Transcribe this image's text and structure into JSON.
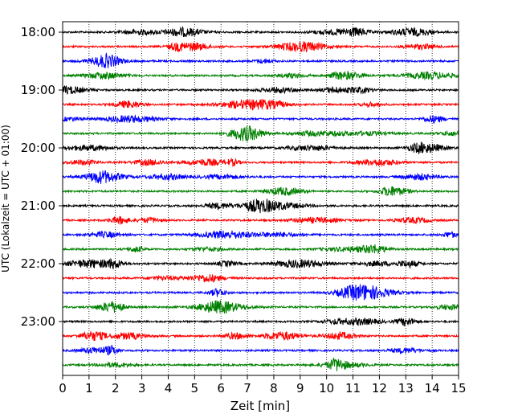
{
  "chart_data": {
    "type": "line",
    "title": "",
    "xlabel": "Zeit  [min]",
    "ylabel": "UTC (Lokalzeit = UTC + 01:00)",
    "xlim": [
      0,
      15
    ],
    "x_ticks": [
      "0",
      "1",
      "2",
      "3",
      "4",
      "5",
      "6",
      "7",
      "8",
      "9",
      "10",
      "11",
      "12",
      "13",
      "14",
      "15"
    ],
    "y_ticks": [
      "18:00",
      "19:00",
      "20:00",
      "21:00",
      "22:00",
      "23:00"
    ],
    "trace_interval_min": 15,
    "first_trace": "18:00",
    "last_trace": "23:45",
    "trace_count": 24,
    "trace_colors": [
      "#000000",
      "#ff0000",
      "#0000ff",
      "#008000"
    ],
    "grid": {
      "x": "dotted",
      "y": "none"
    },
    "legend": "none"
  }
}
